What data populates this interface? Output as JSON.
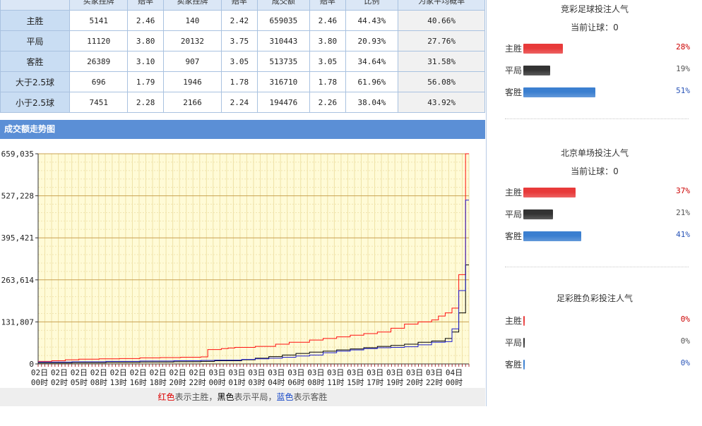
{
  "odds_table": {
    "headers": [
      "",
      "买家挂牌",
      "赔率",
      "卖家挂牌",
      "赔率",
      "成交额",
      "赔率",
      "比例",
      "为家平均概率"
    ],
    "rows": [
      {
        "label": "主胜",
        "cells": [
          "5141",
          "2.46",
          "140",
          "2.42",
          "659035",
          "2.46",
          "44.43%",
          "40.66%"
        ]
      },
      {
        "label": "平局",
        "cells": [
          "11120",
          "3.80",
          "20132",
          "3.75",
          "310443",
          "3.80",
          "20.93%",
          "27.76%"
        ]
      },
      {
        "label": "客胜",
        "cells": [
          "26389",
          "3.10",
          "907",
          "3.05",
          "513735",
          "3.05",
          "34.64%",
          "31.58%"
        ]
      },
      {
        "label": "大于2.5球",
        "cells": [
          "696",
          "1.79",
          "1946",
          "1.78",
          "316710",
          "1.78",
          "61.96%",
          "56.08%"
        ]
      },
      {
        "label": "小于2.5球",
        "cells": [
          "7451",
          "2.28",
          "2166",
          "2.24",
          "194476",
          "2.26",
          "38.04%",
          "43.92%"
        ]
      }
    ]
  },
  "chart_section": {
    "title": "成交额走势图"
  },
  "chart_data": {
    "type": "line",
    "ylim": [
      0,
      659035
    ],
    "y_ticks": [
      "0",
      "131,807",
      "263,614",
      "395,421",
      "527,228",
      "659,035"
    ],
    "x_ticks": [
      {
        "day": "02日",
        "hour": "00时"
      },
      {
        "day": "02日",
        "hour": "02时"
      },
      {
        "day": "02日",
        "hour": "05时"
      },
      {
        "day": "02日",
        "hour": "08时"
      },
      {
        "day": "02日",
        "hour": "13时"
      },
      {
        "day": "02日",
        "hour": "16时"
      },
      {
        "day": "02日",
        "hour": "18时"
      },
      {
        "day": "02日",
        "hour": "20时"
      },
      {
        "day": "02日",
        "hour": "22时"
      },
      {
        "day": "03日",
        "hour": "00时"
      },
      {
        "day": "03日",
        "hour": "01时"
      },
      {
        "day": "03日",
        "hour": "03时"
      },
      {
        "day": "03日",
        "hour": "04时"
      },
      {
        "day": "03日",
        "hour": "06时"
      },
      {
        "day": "03日",
        "hour": "08时"
      },
      {
        "day": "03日",
        "hour": "11时"
      },
      {
        "day": "03日",
        "hour": "15时"
      },
      {
        "day": "03日",
        "hour": "17时"
      },
      {
        "day": "03日",
        "hour": "19时"
      },
      {
        "day": "03日",
        "hour": "20时"
      },
      {
        "day": "03日",
        "hour": "22时"
      },
      {
        "day": "04日",
        "hour": "00时"
      }
    ],
    "grid": true,
    "x_count": 64,
    "series": [
      {
        "key": "home",
        "color": "#ff1111",
        "points": [
          [
            0,
            8000
          ],
          [
            2,
            10000
          ],
          [
            4,
            13000
          ],
          [
            6,
            15000
          ],
          [
            9,
            16000
          ],
          [
            12,
            17000
          ],
          [
            15,
            19000
          ],
          [
            18,
            20000
          ],
          [
            21,
            21000
          ],
          [
            24,
            22000
          ],
          [
            25,
            45000
          ],
          [
            27,
            48000
          ],
          [
            28,
            50000
          ],
          [
            29,
            52000
          ],
          [
            32,
            55000
          ],
          [
            35,
            62000
          ],
          [
            37,
            68000
          ],
          [
            40,
            75000
          ],
          [
            42,
            80000
          ],
          [
            44,
            85000
          ],
          [
            46,
            90000
          ],
          [
            48,
            95000
          ],
          [
            50,
            100000
          ],
          [
            52,
            112000
          ],
          [
            54,
            125000
          ],
          [
            56,
            132000
          ],
          [
            58,
            138000
          ],
          [
            59,
            150000
          ],
          [
            60,
            160000
          ],
          [
            61,
            175000
          ],
          [
            62,
            280000
          ],
          [
            63,
            659035
          ],
          [
            63.5,
            659035
          ]
        ]
      },
      {
        "key": "draw",
        "color": "#000000",
        "points": [
          [
            0,
            3000
          ],
          [
            5,
            4000
          ],
          [
            10,
            5000
          ],
          [
            15,
            6000
          ],
          [
            20,
            7000
          ],
          [
            24,
            8000
          ],
          [
            26,
            10000
          ],
          [
            30,
            13000
          ],
          [
            32,
            18000
          ],
          [
            34,
            23000
          ],
          [
            36,
            28000
          ],
          [
            38,
            33000
          ],
          [
            40,
            37000
          ],
          [
            42,
            40000
          ],
          [
            44,
            44000
          ],
          [
            46,
            47000
          ],
          [
            48,
            51000
          ],
          [
            50,
            55000
          ],
          [
            52,
            58000
          ],
          [
            54,
            62000
          ],
          [
            56,
            68000
          ],
          [
            58,
            72000
          ],
          [
            60,
            80000
          ],
          [
            61,
            100000
          ],
          [
            62,
            160000
          ],
          [
            63,
            310443
          ],
          [
            63.5,
            310443
          ]
        ]
      },
      {
        "key": "away",
        "color": "#1c1ccf",
        "points": [
          [
            0,
            6000
          ],
          [
            5,
            7000
          ],
          [
            10,
            8000
          ],
          [
            15,
            9000
          ],
          [
            20,
            10000
          ],
          [
            24,
            11000
          ],
          [
            26,
            12000
          ],
          [
            30,
            14000
          ],
          [
            32,
            16000
          ],
          [
            34,
            18000
          ],
          [
            36,
            21000
          ],
          [
            38,
            25000
          ],
          [
            40,
            28000
          ],
          [
            42,
            35000
          ],
          [
            44,
            40000
          ],
          [
            46,
            44000
          ],
          [
            48,
            48000
          ],
          [
            50,
            51000
          ],
          [
            52,
            52000
          ],
          [
            54,
            54000
          ],
          [
            56,
            60000
          ],
          [
            58,
            68000
          ],
          [
            60,
            70000
          ],
          [
            61,
            110000
          ],
          [
            62,
            230000
          ],
          [
            63,
            513735
          ],
          [
            63.5,
            513735
          ]
        ]
      }
    ]
  },
  "legend": {
    "red": "红色",
    "red_text": "表示主胜，",
    "black": "黑色",
    "black_text": "表示平局，",
    "blue": "蓝色",
    "blue_text": "表示客胜"
  },
  "panels": [
    {
      "title": "竞彩足球投注人气",
      "subtitle": "当前让球：0",
      "rows": [
        {
          "label": "主胜",
          "pct": "28%",
          "value": 28,
          "color": "#e83a3a",
          "pct_color": "#cc0000"
        },
        {
          "label": "平局",
          "pct": "19%",
          "value": 19,
          "color": "#333333",
          "pct_color": "#555555"
        },
        {
          "label": "客胜",
          "pct": "51%",
          "value": 51,
          "color": "#3b7fd0",
          "pct_color": "#2a55b8"
        }
      ]
    },
    {
      "title": "北京单场投注人气",
      "subtitle": "当前让球：0",
      "rows": [
        {
          "label": "主胜",
          "pct": "37%",
          "value": 37,
          "color": "#e83a3a",
          "pct_color": "#cc0000"
        },
        {
          "label": "平局",
          "pct": "21%",
          "value": 21,
          "color": "#333333",
          "pct_color": "#555555"
        },
        {
          "label": "客胜",
          "pct": "41%",
          "value": 41,
          "color": "#3b7fd0",
          "pct_color": "#2a55b8"
        }
      ]
    },
    {
      "title": "足彩胜负彩投注人气",
      "subtitle": "",
      "rows": [
        {
          "label": "主胜",
          "pct": "0%",
          "value": 0,
          "color": "#e83a3a",
          "pct_color": "#cc0000"
        },
        {
          "label": "平局",
          "pct": "0%",
          "value": 0,
          "color": "#333333",
          "pct_color": "#555555"
        },
        {
          "label": "客胜",
          "pct": "0%",
          "value": 0,
          "color": "#3b7fd0",
          "pct_color": "#2a55b8"
        }
      ]
    }
  ]
}
